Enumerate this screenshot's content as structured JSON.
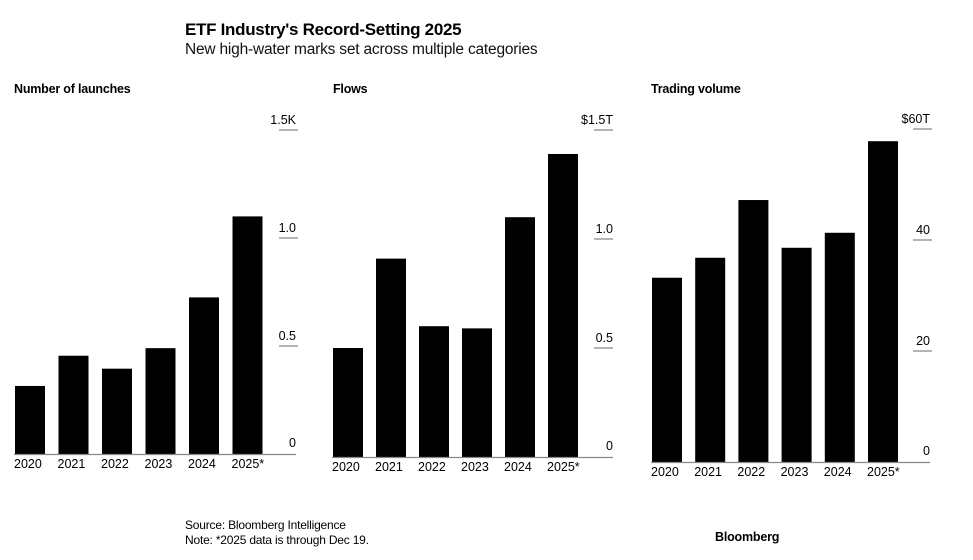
{
  "header": {
    "title": "ETF Industry's Record-Setting 2025",
    "subtitle": "New high-water marks set across multiple categories"
  },
  "footer": {
    "source": "Source: Bloomberg Intelligence",
    "note": "Note: *2025 data is through Dec 19.",
    "brand": "Bloomberg"
  },
  "colors": {
    "bar": "#000000",
    "axis": "#888888",
    "text": "#000000"
  },
  "chart_data": [
    {
      "type": "bar",
      "title": "Number of launches",
      "xlabel": "",
      "ylabel": "",
      "categories": [
        "2020",
        "2021",
        "2022",
        "2023",
        "2024",
        "2025*"
      ],
      "values": [
        315,
        455,
        395,
        490,
        725,
        1100
      ],
      "unit": "count",
      "ylim": [
        0,
        1500
      ],
      "yticks": [
        0,
        500,
        1000,
        1500
      ],
      "ytick_labels": [
        "0",
        "0.5",
        "1.0",
        "1.5K"
      ],
      "grid": false,
      "yaxis_side": "right"
    },
    {
      "type": "bar",
      "title": "Flows",
      "xlabel": "",
      "ylabel": "",
      "categories": [
        "2020",
        "2021",
        "2022",
        "2023",
        "2024",
        "2025*"
      ],
      "values": [
        0.5,
        0.91,
        0.6,
        0.59,
        1.1,
        1.39
      ],
      "unit": "USD trillions",
      "ylim": [
        0,
        1.5
      ],
      "yticks": [
        0,
        0.5,
        1.0,
        1.5
      ],
      "ytick_labels": [
        "0",
        "0.5",
        "1.0",
        "$1.5T"
      ],
      "grid": false,
      "yaxis_side": "right"
    },
    {
      "type": "bar",
      "title": "Trading volume",
      "xlabel": "",
      "ylabel": "",
      "categories": [
        "2020",
        "2021",
        "2022",
        "2023",
        "2024",
        "2025*"
      ],
      "values": [
        33.2,
        36.8,
        47.2,
        38.6,
        41.3,
        57.8
      ],
      "unit": "USD trillions",
      "ylim": [
        0,
        60
      ],
      "yticks": [
        0,
        20,
        40,
        60
      ],
      "ytick_labels": [
        "0",
        "20",
        "40",
        "$60T"
      ],
      "grid": false,
      "yaxis_side": "right"
    }
  ]
}
